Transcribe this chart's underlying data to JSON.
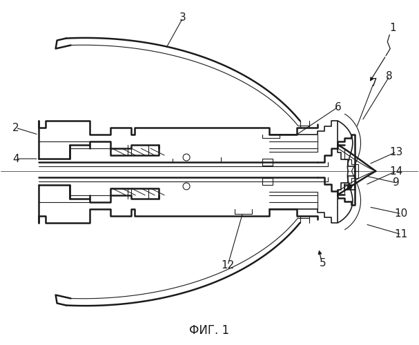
{
  "bg_color": "#ffffff",
  "line_color": "#1a1a1a",
  "title": "ФИГ. 1",
  "title_fontsize": 12,
  "label_fontsize": 11,
  "lw_thick": 1.8,
  "lw_med": 1.2,
  "lw_thin": 0.8
}
